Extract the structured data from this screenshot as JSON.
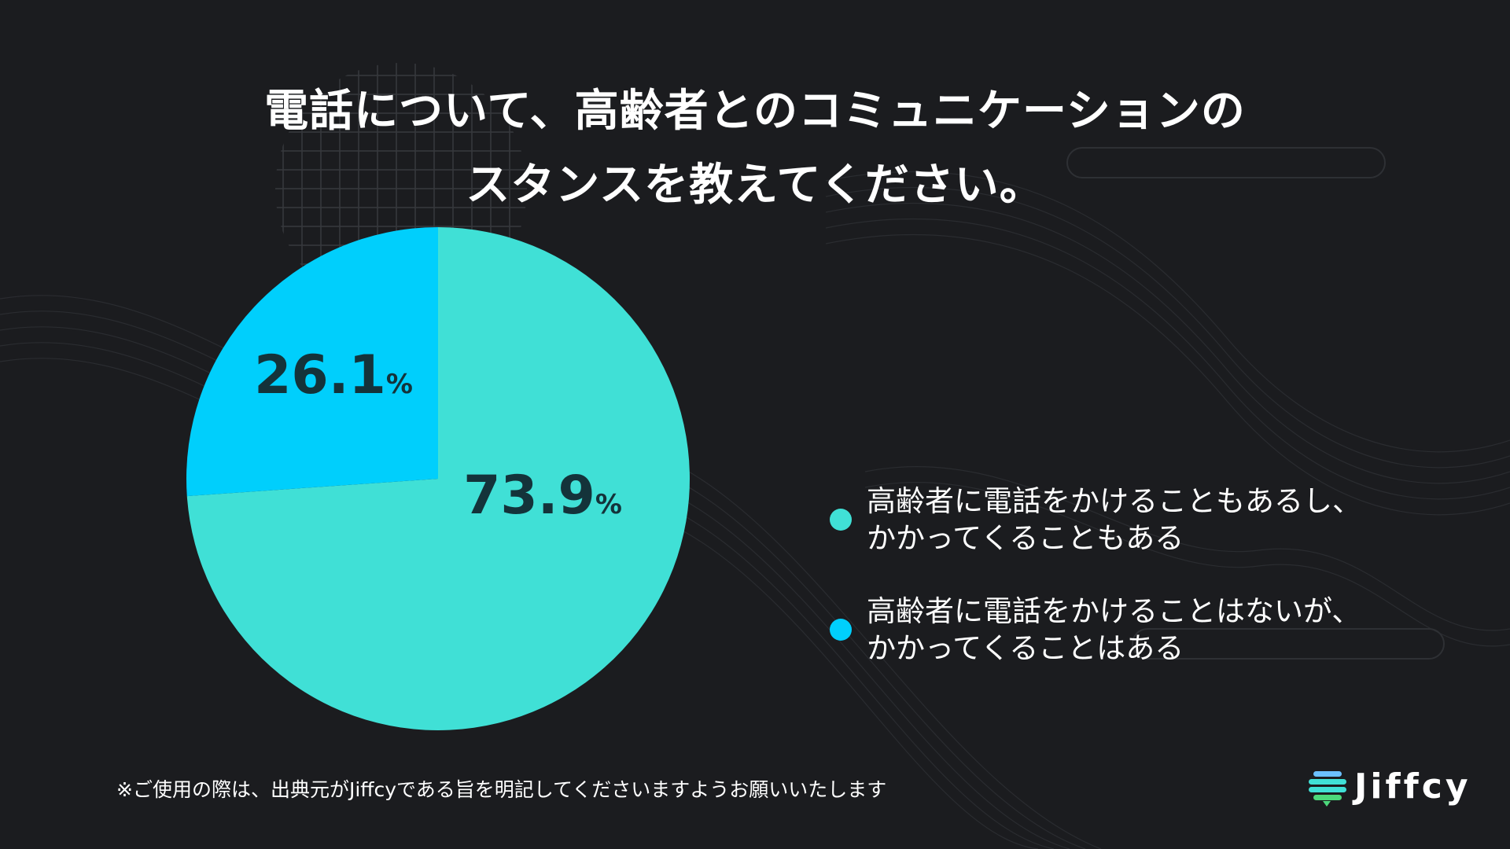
{
  "title": {
    "line1": "電話について、高齢者とのコミュニケーションの",
    "line2": "スタンスを教えてください。"
  },
  "chart_data": {
    "type": "pie",
    "title": "電話について、高齢者とのコミュニケーションのスタンスを教えてください。",
    "unit": "%",
    "slices": [
      {
        "name": "高齢者に電話をかけることもあるし、かかってくることもある",
        "value": 73.9,
        "label_value": "73.9",
        "color": "#40e0d6"
      },
      {
        "name": "高齢者に電話をかけることはないが、かかってくることはある",
        "value": 26.1,
        "label_value": "26.1",
        "color": "#00cffc"
      }
    ]
  },
  "legend": [
    {
      "line1": "高齢者に電話をかけることもあるし、",
      "line2": "かかってくることもある",
      "color": "#40e0d6"
    },
    {
      "line1": "高齢者に電話をかけることはないが、",
      "line2": "かかってくることはある",
      "color": "#00cffc"
    }
  ],
  "footnote": "※ご使用の際は、出典元がJiffcyである旨を明記してくださいますようお願いいたします",
  "logo": {
    "text": "Jiffcy",
    "icon": "jiffcy-logo-icon",
    "icon_colors": [
      "#6cc0ff",
      "#40e0d6",
      "#4cd97b"
    ]
  }
}
